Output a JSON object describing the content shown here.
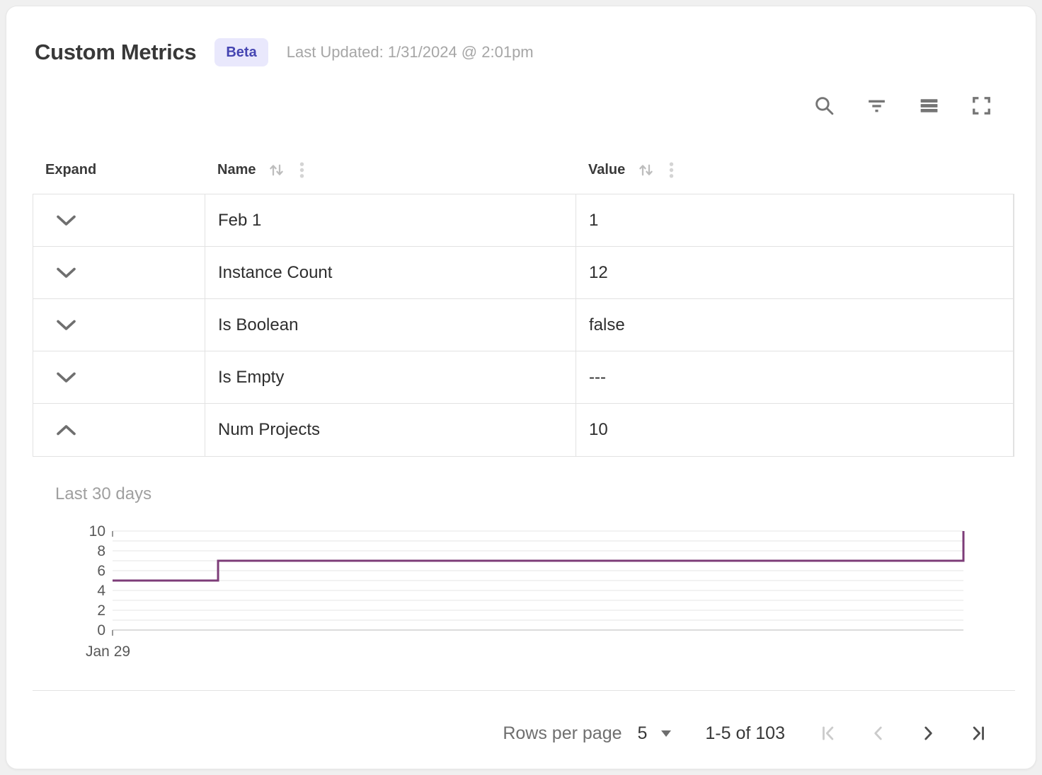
{
  "header": {
    "title": "Custom Metrics",
    "badge": "Beta",
    "last_updated": "Last Updated: 1/31/2024 @ 2:01pm"
  },
  "toolbar": {
    "icons": [
      "search",
      "filter",
      "density",
      "fullscreen"
    ]
  },
  "table": {
    "columns": [
      {
        "label": "Expand",
        "sortable": false,
        "menu": false
      },
      {
        "label": "Name",
        "sortable": true,
        "menu": true
      },
      {
        "label": "Value",
        "sortable": true,
        "menu": true
      }
    ],
    "rows": [
      {
        "name": "Feb 1",
        "value": "1",
        "expanded": false
      },
      {
        "name": "Instance Count",
        "value": "12",
        "expanded": false
      },
      {
        "name": "Is Boolean",
        "value": "false",
        "expanded": false
      },
      {
        "name": "Is Empty",
        "value": "---",
        "expanded": false
      },
      {
        "name": "Num Projects",
        "value": "10",
        "expanded": true
      }
    ]
  },
  "chart_data": {
    "type": "line",
    "line_style": "step-after",
    "title": "Last 30 days",
    "series": [
      {
        "name": "Num Projects",
        "points": [
          {
            "x": 0,
            "y": 5
          },
          {
            "x": 0.124,
            "y": 7
          },
          {
            "x": 1,
            "y": 10
          }
        ]
      }
    ],
    "x_unit": "fraction of 30-day window starting Jan 29",
    "x_tick_labels": [
      "Jan 29"
    ],
    "ylim": [
      0,
      10
    ],
    "yticks": [
      0,
      2,
      4,
      6,
      8,
      10
    ],
    "grid": "horizontal gridline every 1 unit",
    "line_color": "#7d3c78"
  },
  "pagination": {
    "rows_per_page_label": "Rows per page",
    "rows_per_page_value": "5",
    "range_label": "1-5 of 103",
    "nav": [
      {
        "name": "first-page",
        "disabled": true
      },
      {
        "name": "previous-page",
        "disabled": true
      },
      {
        "name": "next-page",
        "disabled": false
      },
      {
        "name": "last-page",
        "disabled": false
      }
    ]
  },
  "colors": {
    "badge_bg": "#e9e8fc",
    "badge_text": "#4545b2",
    "chart_line": "#7d3c78",
    "grid_border": "#e2e2e2"
  }
}
